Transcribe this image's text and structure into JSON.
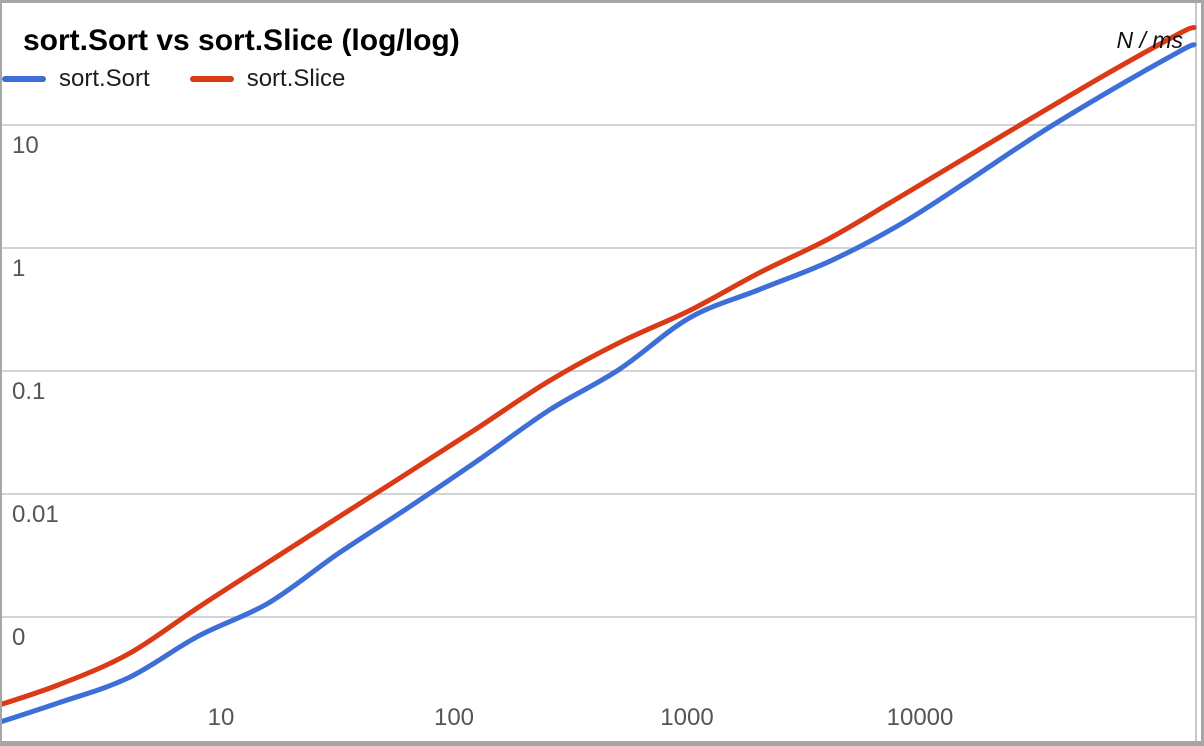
{
  "chart": {
    "title": "sort.Sort vs sort.Slice (log/log)",
    "unit_label": "N / ms",
    "legend": [
      {
        "label": "sort.Sort",
        "color": "#3e6fd8"
      },
      {
        "label": "sort.Slice",
        "color": "#db3a17"
      }
    ]
  },
  "chart_data": {
    "type": "line",
    "title": "sort.Sort vs sort.Slice (log/log)",
    "xlabel": "N",
    "ylabel": "ms",
    "unit_label": "N / ms",
    "x_scale": "log",
    "y_scale": "log",
    "grid": "horizontal-only",
    "legend_position": "top-left",
    "smooth_lines": true,
    "x_range": [
      1.1,
      155000
    ],
    "y_range": [
      0.0001,
      104
    ],
    "x_ticks": [
      {
        "value": 10,
        "label": "10"
      },
      {
        "value": 100,
        "label": "100"
      },
      {
        "value": 1000,
        "label": "1000"
      },
      {
        "value": 10000,
        "label": "10000"
      }
    ],
    "y_gridlines": [
      {
        "value": 10,
        "label": "10"
      },
      {
        "value": 1,
        "label": "1"
      },
      {
        "value": 0.1,
        "label": "0.1"
      },
      {
        "value": 0.01,
        "label": "0.01"
      },
      {
        "value": 0.001,
        "label": "0"
      }
    ],
    "x": [
      1,
      2,
      4,
      8,
      16,
      32,
      64,
      128,
      256,
      512,
      1024,
      2048,
      4096,
      8192,
      16384,
      32768,
      65536,
      131072,
      150000
    ],
    "series": [
      {
        "name": "sort.Sort",
        "color": "#3e6fd8",
        "values": [
          0.00013,
          0.0002,
          0.00032,
          0.0007,
          0.0013,
          0.0033,
          0.0078,
          0.019,
          0.048,
          0.103,
          0.27,
          0.46,
          0.78,
          1.55,
          3.6,
          8.6,
          19,
          40,
          45
        ]
      },
      {
        "name": "sort.Slice",
        "color": "#db3a17",
        "values": [
          0.00018,
          0.00028,
          0.0005,
          0.0012,
          0.0028,
          0.0065,
          0.015,
          0.035,
          0.083,
          0.17,
          0.31,
          0.63,
          1.2,
          2.6,
          5.7,
          12.5,
          27,
          56,
          62
        ]
      }
    ]
  }
}
